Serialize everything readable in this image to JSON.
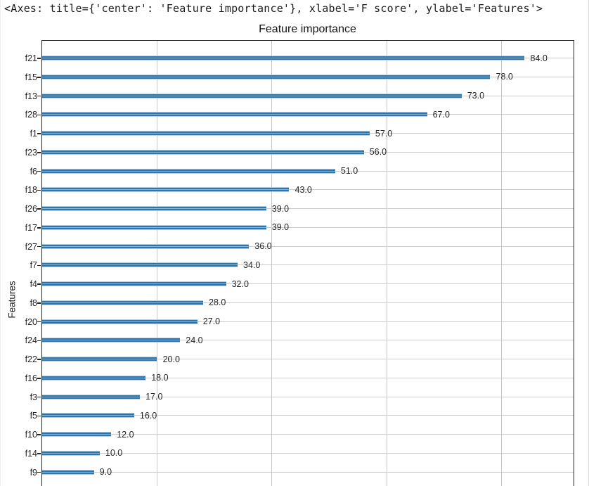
{
  "header": {
    "repr_text": "<Axes: title={'center': 'Feature importance'}, xlabel='F score', ylabel='Features'>"
  },
  "chart_data": {
    "type": "bar",
    "orientation": "horizontal",
    "title": "Feature importance",
    "xlabel": "F score",
    "ylabel": "Features",
    "categories": [
      "f21",
      "f15",
      "f13",
      "f28",
      "f1",
      "f23",
      "f6",
      "f18",
      "f26",
      "f17",
      "f27",
      "f7",
      "f4",
      "f8",
      "f20",
      "f24",
      "f22",
      "f16",
      "f3",
      "f5",
      "f10",
      "f14",
      "f9"
    ],
    "values": [
      84,
      78,
      73,
      67,
      57,
      56,
      51,
      43,
      39,
      39,
      36,
      34,
      32,
      28,
      27,
      24,
      20,
      18,
      17,
      16,
      12,
      10,
      9
    ],
    "value_labels": [
      "84.0",
      "78.0",
      "73.0",
      "67.0",
      "57.0",
      "56.0",
      "51.0",
      "43.0",
      "39.0",
      "39.0",
      "36.0",
      "34.0",
      "32.0",
      "28.0",
      "27.0",
      "24.0",
      "20.0",
      "18.0",
      "17.0",
      "16.0",
      "12.0",
      "10.0",
      "9.0"
    ],
    "xlim": [
      0,
      92.4
    ],
    "x_gridlines": [
      20,
      40,
      60,
      80
    ],
    "grid": true,
    "legend_position": "none",
    "bar_color": "#2b77ad",
    "grid_color": "#c9c9c9",
    "spine_color": "#222222",
    "text_color": "#262626",
    "note_bottom_axis": "x-axis cut off at bottom edge of visible area"
  }
}
